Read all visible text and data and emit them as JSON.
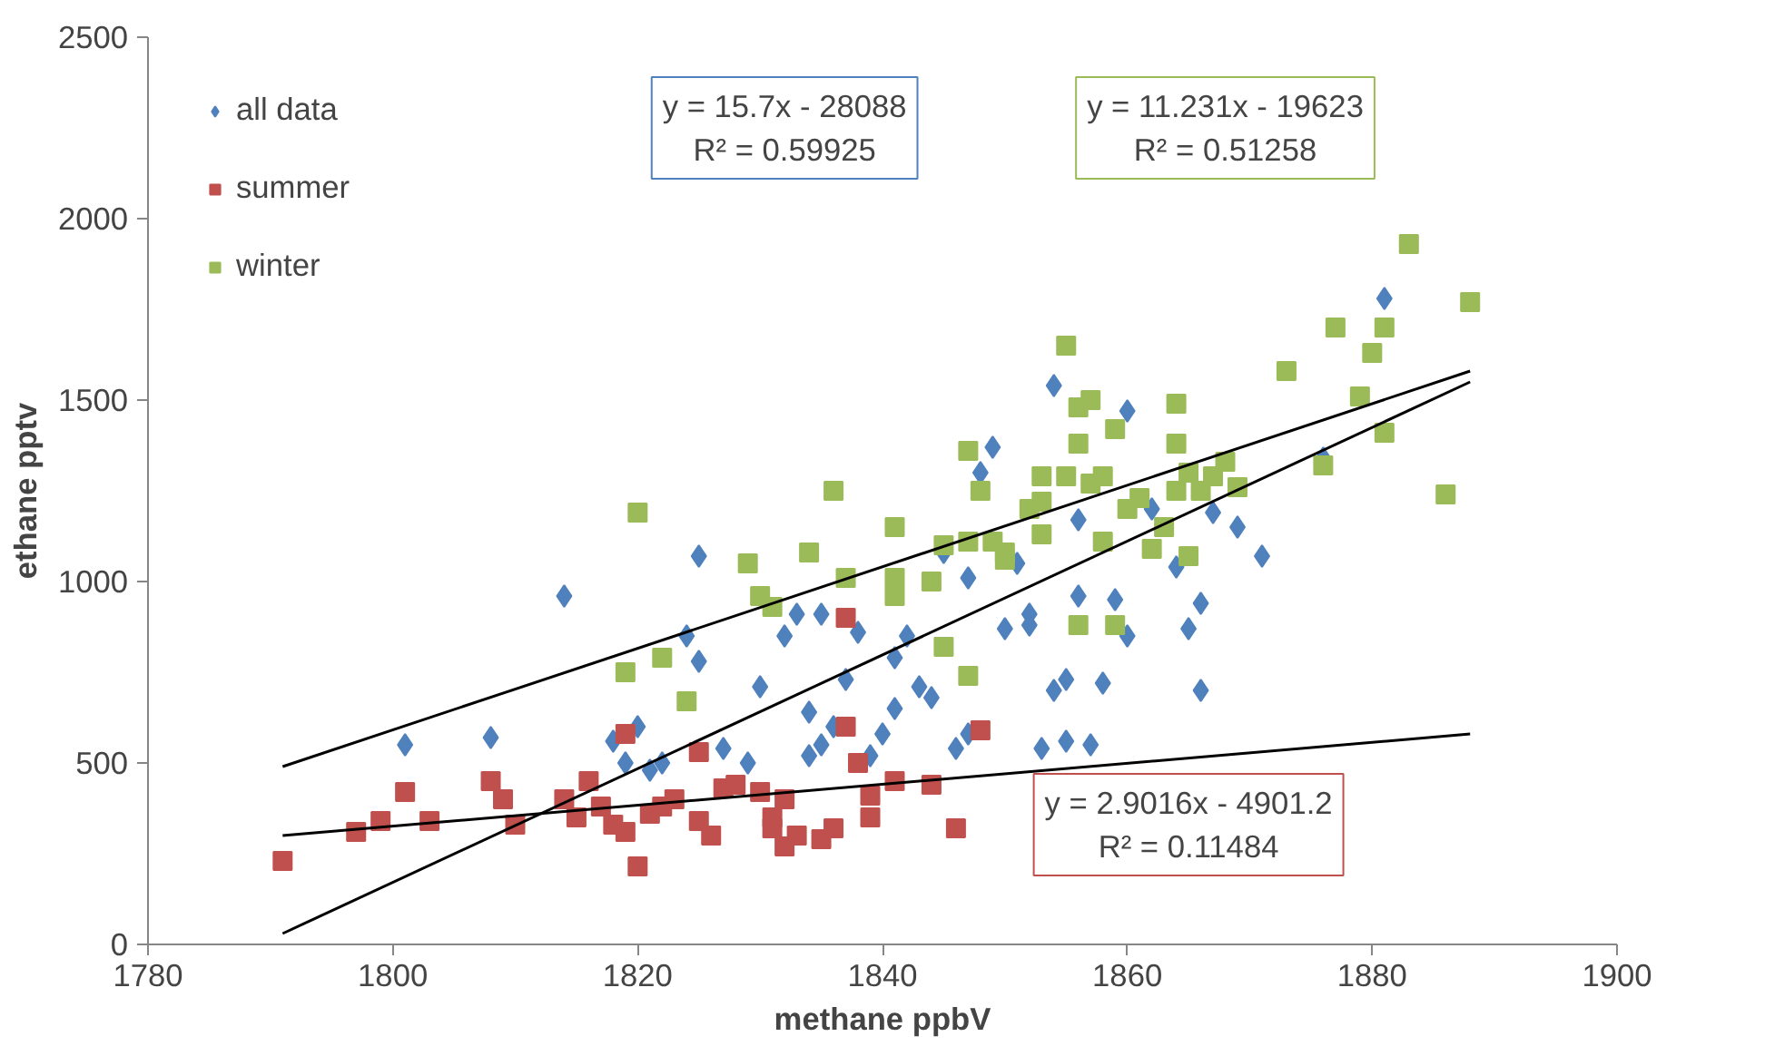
{
  "chart_data": {
    "type": "scatter",
    "xlabel": "methane ppbV",
    "ylabel": "ethane pptv",
    "xlim": [
      1780,
      1900
    ],
    "ylim": [
      0,
      2500
    ],
    "xticks": [
      1780,
      1800,
      1820,
      1840,
      1860,
      1880,
      1900
    ],
    "yticks": [
      0,
      500,
      1000,
      1500,
      2000,
      2500
    ],
    "grid": false,
    "legend": "top left",
    "series": [
      {
        "name": "all data",
        "color": "#4f81bd",
        "marker": "diamond",
        "x": [
          1801,
          1808,
          1814,
          1818,
          1819,
          1820,
          1821,
          1822,
          1824,
          1825,
          1825,
          1827,
          1829,
          1830,
          1831,
          1832,
          1833,
          1834,
          1834,
          1835,
          1835,
          1836,
          1837,
          1838,
          1839,
          1840,
          1841,
          1841,
          1842,
          1843,
          1844,
          1845,
          1846,
          1847,
          1847,
          1848,
          1849,
          1850,
          1851,
          1852,
          1852,
          1853,
          1854,
          1854,
          1855,
          1855,
          1856,
          1856,
          1857,
          1858,
          1859,
          1860,
          1860,
          1862,
          1864,
          1865,
          1866,
          1866,
          1867,
          1869,
          1871,
          1881,
          1876
        ],
        "values": [
          550,
          570,
          960,
          560,
          500,
          600,
          480,
          500,
          850,
          780,
          1070,
          540,
          500,
          710,
          null,
          850,
          910,
          640,
          520,
          910,
          550,
          600,
          730,
          860,
          520,
          580,
          790,
          650,
          850,
          710,
          680,
          1080,
          540,
          1010,
          580,
          1300,
          1370,
          870,
          1050,
          880,
          910,
          540,
          700,
          1540,
          730,
          560,
          960,
          1170,
          550,
          720,
          950,
          850,
          1470,
          1200,
          1040,
          870,
          940,
          700,
          1190,
          1150,
          1070,
          1780,
          1340
        ]
      },
      {
        "name": "summer",
        "color": "#c0504d",
        "marker": "square",
        "x": [
          1791,
          1797,
          1799,
          1801,
          1803,
          1808,
          1809,
          1810,
          1814,
          1815,
          1816,
          1817,
          1818,
          1819,
          1819,
          1820,
          1821,
          1822,
          1823,
          1825,
          1825,
          1826,
          1827,
          1828,
          1830,
          1831,
          1831,
          1832,
          1832,
          1833,
          1835,
          1836,
          1837,
          1837,
          1838,
          1839,
          1839,
          1841,
          1844,
          1846,
          1848
        ],
        "values": [
          230,
          310,
          340,
          420,
          340,
          450,
          400,
          330,
          400,
          350,
          450,
          380,
          330,
          310,
          580,
          215,
          360,
          380,
          400,
          340,
          530,
          300,
          430,
          440,
          420,
          350,
          320,
          400,
          270,
          300,
          290,
          320,
          900,
          600,
          500,
          410,
          350,
          450,
          440,
          320,
          590
        ]
      },
      {
        "name": "winter",
        "color": "#9bbb59",
        "marker": "square",
        "x": [
          1819,
          1820,
          1822,
          1824,
          1829,
          1830,
          1831,
          1834,
          1836,
          1837,
          1841,
          1841,
          1841,
          1844,
          1845,
          1845,
          1847,
          1847,
          1847,
          1848,
          1849,
          1850,
          1850,
          1852,
          1853,
          1853,
          1853,
          1855,
          1855,
          1856,
          1856,
          1857,
          1857,
          1858,
          1856,
          1858,
          1859,
          1859,
          1860,
          1861,
          1862,
          1864,
          1864,
          1864,
          1865,
          1866,
          1867,
          1868,
          1869,
          1873,
          1876,
          1877,
          1879,
          1880,
          1881,
          1881,
          1883,
          1886,
          1888,
          1863,
          1865
        ],
        "values": [
          750,
          1190,
          790,
          670,
          1050,
          960,
          930,
          1080,
          1250,
          1010,
          960,
          1010,
          1150,
          1000,
          820,
          1100,
          1110,
          1360,
          740,
          1250,
          1110,
          1060,
          1080,
          1200,
          1290,
          1220,
          1130,
          1650,
          1290,
          1380,
          1480,
          1500,
          1270,
          1290,
          880,
          1110,
          1420,
          880,
          1200,
          1230,
          1090,
          1490,
          1380,
          1250,
          1300,
          1250,
          1290,
          1330,
          1260,
          1580,
          1320,
          1700,
          1510,
          1630,
          1700,
          1410,
          1930,
          1240,
          1770,
          1150,
          1070
        ]
      },
      {
        "type": "line",
        "color": "#000000",
        "x": [
          1791,
          1888
        ],
        "values": [
          30,
          1550
        ]
      },
      {
        "type": "line",
        "color": "#000000",
        "x": [
          1791,
          1888
        ],
        "values": [
          490,
          1580
        ]
      },
      {
        "type": "line",
        "color": "#000000",
        "x": [
          1791,
          1888
        ],
        "values": [
          300,
          580
        ]
      }
    ],
    "annotations": [
      "y = 15.7x - 28088\nR² = 0.59925",
      "y = 11.231x - 19623\nR² = 0.51258",
      "y = 2.9016x - 4901.2\nR² = 0.11484"
    ]
  }
}
